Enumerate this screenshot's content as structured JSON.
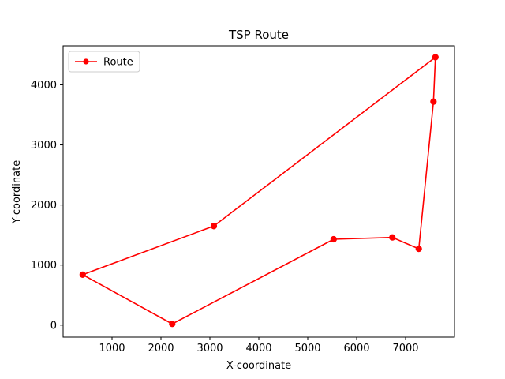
{
  "chart_data": {
    "type": "line",
    "title": "TSP Route",
    "xlabel": "X-coordinate",
    "ylabel": "Y-coordinate",
    "xlim": [
      0,
      8000
    ],
    "ylim": [
      -200,
      4650
    ],
    "xticks": [
      1000,
      2000,
      3000,
      4000,
      5000,
      6000,
      7000
    ],
    "yticks": [
      0,
      1000,
      2000,
      3000,
      4000
    ],
    "grid": false,
    "legend": {
      "position": "upper-left",
      "entries": [
        "Route"
      ]
    },
    "series": [
      {
        "name": "Route",
        "color": "#ff0000",
        "marker": "circle",
        "points": [
          {
            "x": 3080,
            "y": 1650
          },
          {
            "x": 7610,
            "y": 4460
          },
          {
            "x": 7570,
            "y": 3720
          },
          {
            "x": 7270,
            "y": 1270
          },
          {
            "x": 6730,
            "y": 1460
          },
          {
            "x": 5530,
            "y": 1430
          },
          {
            "x": 2230,
            "y": 20
          },
          {
            "x": 400,
            "y": 840
          },
          {
            "x": 3080,
            "y": 1650
          }
        ]
      }
    ]
  }
}
